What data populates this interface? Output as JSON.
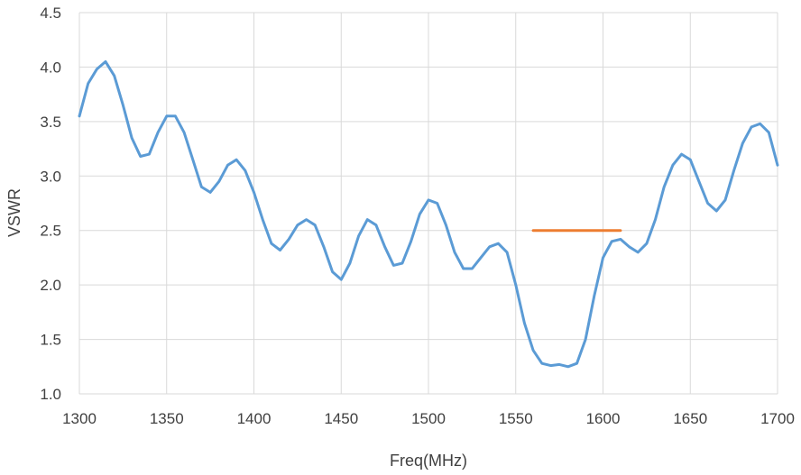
{
  "chart_data": {
    "type": "line",
    "title": "",
    "xlabel": "Freq(MHz)",
    "ylabel": "VSWR",
    "xlim": [
      1300,
      1700
    ],
    "ylim": [
      1.0,
      4.5
    ],
    "x_ticks": [
      1300,
      1350,
      1400,
      1450,
      1500,
      1550,
      1600,
      1650,
      1700
    ],
    "y_ticks": [
      "1.0",
      "1.5",
      "2.0",
      "2.5",
      "3.0",
      "3.5",
      "4.0",
      "4.5"
    ],
    "grid": true,
    "legend": "none",
    "series": [
      {
        "color": "#5b9bd5",
        "x": [
          1300,
          1305,
          1310,
          1315,
          1320,
          1325,
          1330,
          1335,
          1340,
          1345,
          1350,
          1355,
          1360,
          1365,
          1370,
          1375,
          1380,
          1385,
          1390,
          1395,
          1400,
          1405,
          1410,
          1415,
          1420,
          1425,
          1430,
          1435,
          1440,
          1445,
          1450,
          1455,
          1460,
          1465,
          1470,
          1475,
          1480,
          1485,
          1490,
          1495,
          1500,
          1505,
          1510,
          1515,
          1520,
          1525,
          1530,
          1535,
          1540,
          1545,
          1550,
          1555,
          1560,
          1565,
          1570,
          1575,
          1580,
          1585,
          1590,
          1595,
          1600,
          1605,
          1610,
          1615,
          1620,
          1625,
          1630,
          1635,
          1640,
          1645,
          1650,
          1655,
          1660,
          1665,
          1670,
          1675,
          1680,
          1685,
          1690,
          1695,
          1700
        ],
        "y": [
          3.55,
          3.85,
          3.98,
          4.05,
          3.92,
          3.65,
          3.35,
          3.18,
          3.2,
          3.4,
          3.55,
          3.55,
          3.4,
          3.15,
          2.9,
          2.85,
          2.95,
          3.1,
          3.15,
          3.05,
          2.85,
          2.6,
          2.38,
          2.32,
          2.42,
          2.55,
          2.6,
          2.55,
          2.35,
          2.12,
          2.05,
          2.2,
          2.45,
          2.6,
          2.55,
          2.35,
          2.18,
          2.2,
          2.4,
          2.65,
          2.78,
          2.75,
          2.55,
          2.3,
          2.15,
          2.15,
          2.25,
          2.35,
          2.38,
          2.3,
          2.0,
          1.65,
          1.4,
          1.28,
          1.26,
          1.27,
          1.25,
          1.28,
          1.5,
          1.9,
          2.25,
          2.4,
          2.42,
          2.35,
          2.3,
          2.38,
          2.6,
          2.9,
          3.1,
          3.2,
          3.15,
          2.95,
          2.75,
          2.68,
          2.78,
          3.05,
          3.3,
          3.45,
          3.48,
          3.4,
          3.1
        ]
      },
      {
        "color": "#ed7d31",
        "x": [
          1560,
          1610
        ],
        "y": [
          2.5,
          2.5
        ]
      }
    ]
  }
}
